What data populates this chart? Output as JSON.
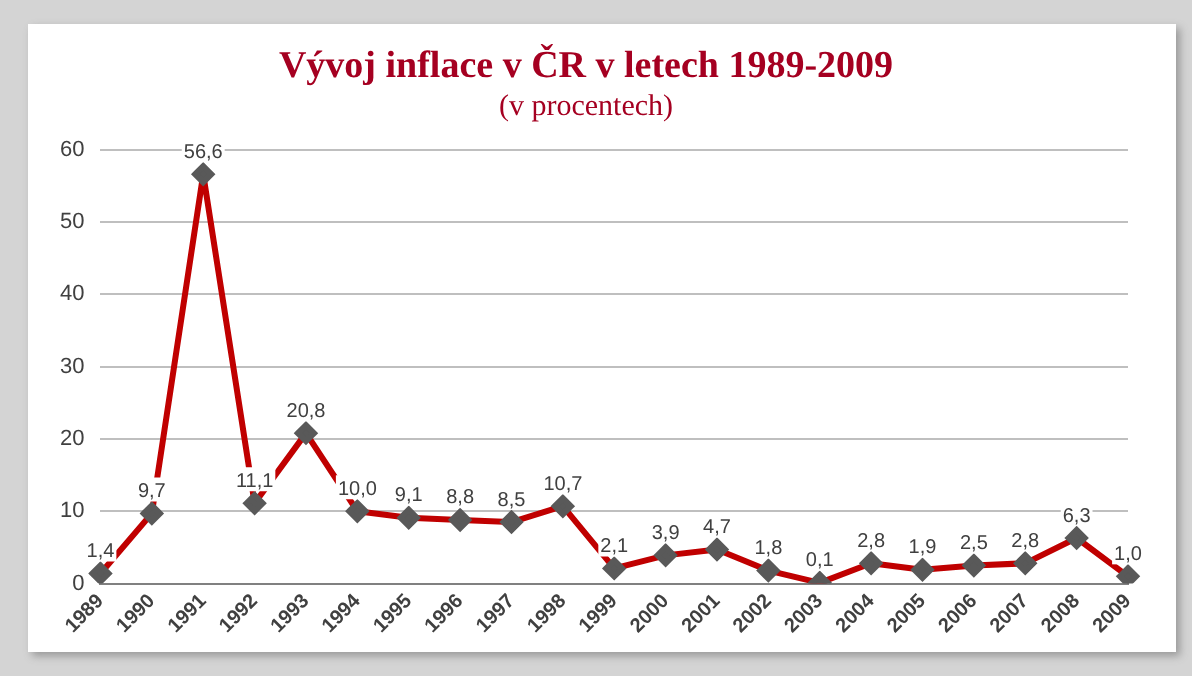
{
  "chart_data": {
    "type": "line",
    "title": "Vývoj inflace v ČR v letech 1989-2009",
    "subtitle": "(v procentech)",
    "categories": [
      "1989",
      "1990",
      "1991",
      "1992",
      "1993",
      "1994",
      "1995",
      "1996",
      "1997",
      "1998",
      "1999",
      "2000",
      "2001",
      "2002",
      "2003",
      "2004",
      "2005",
      "2006",
      "2007",
      "2008",
      "2009"
    ],
    "series": [
      {
        "color": "#c00000",
        "values": [
          1.4,
          9.7,
          56.6,
          11.1,
          20.8,
          10.0,
          9.1,
          8.8,
          8.5,
          10.7,
          2.1,
          3.9,
          4.7,
          1.8,
          0.1,
          2.8,
          1.9,
          2.5,
          2.8,
          6.3,
          1.0
        ],
        "value_labels": [
          "1,4",
          "9,7",
          "56,6",
          "11,1",
          "20,8",
          "10,0",
          "9,1",
          "8,8",
          "8,5",
          "10,7",
          "2,1",
          "3,9",
          "4,7",
          "1,8",
          "0,1",
          "2,8",
          "1,9",
          "2,5",
          "2,8",
          "6,3",
          "1,0"
        ]
      }
    ],
    "ylim": [
      0,
      60
    ],
    "yticks": [
      0,
      10,
      20,
      30,
      40,
      50,
      60
    ],
    "grid": "y",
    "legend": false,
    "marker": "diamond",
    "line_style": "solid"
  }
}
